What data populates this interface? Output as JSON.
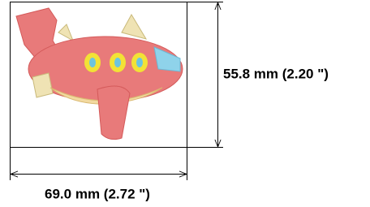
{
  "dimensions": {
    "height": {
      "label": "55.8 mm (2.20 \")"
    },
    "width": {
      "label": "69.0 mm (2.72 \")"
    }
  }
}
